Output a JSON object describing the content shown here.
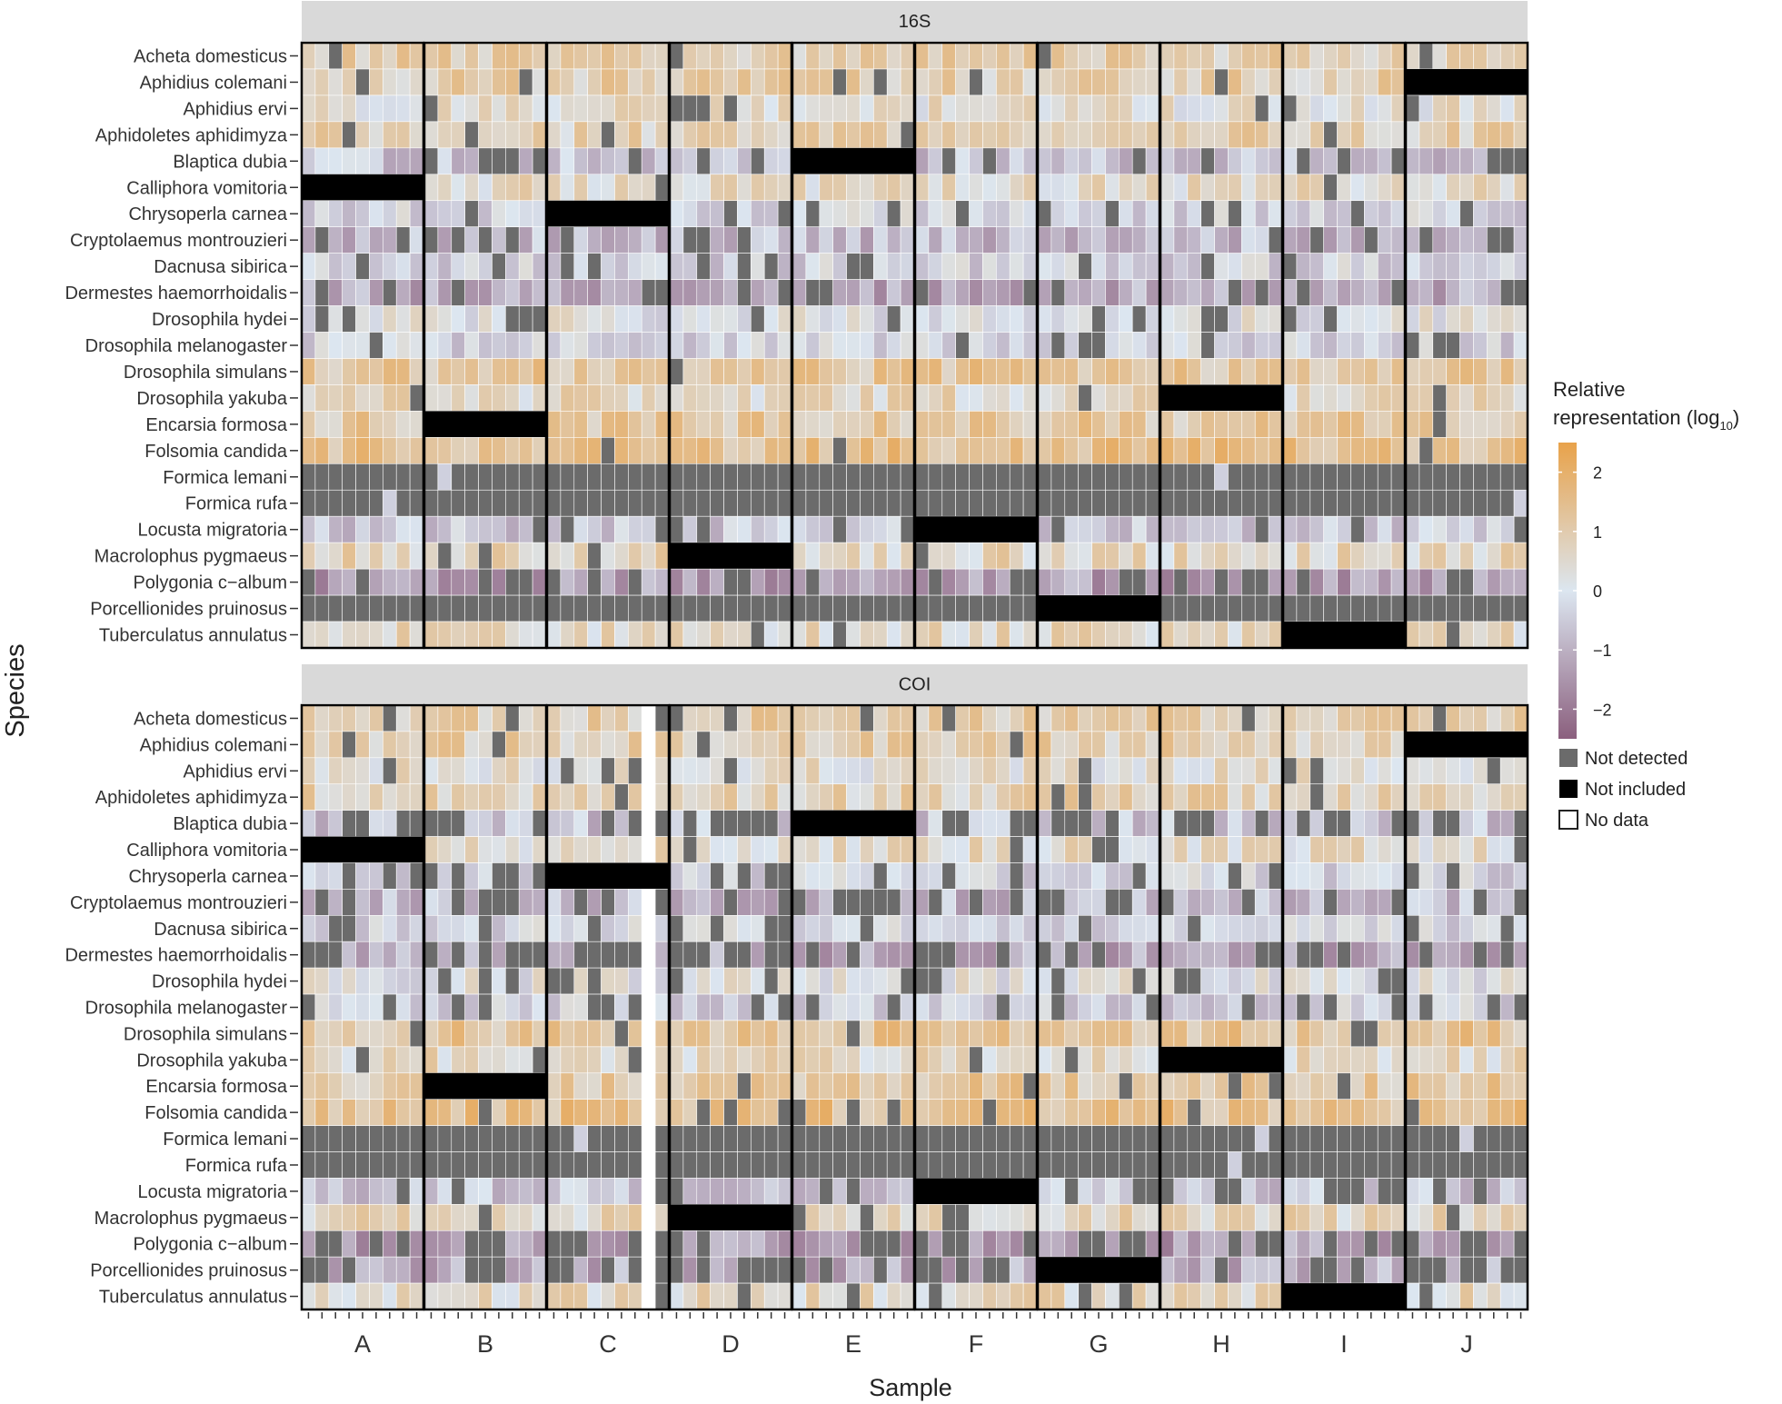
{
  "chart_data": {
    "type": "heatmap",
    "facets": [
      "16S",
      "COI"
    ],
    "species": [
      "Acheta domesticus",
      "Aphidius colemani",
      "Aphidius ervi",
      "Aphidoletes aphidimyza",
      "Blaptica dubia",
      "Calliphora vomitoria",
      "Chrysoperla carnea",
      "Cryptolaemus montrouzieri",
      "Dacnusa sibirica",
      "Dermestes haemorrhoidalis",
      "Drosophila hydei",
      "Drosophila melanogaster",
      "Drosophila simulans",
      "Drosophila yakuba",
      "Encarsia formosa",
      "Folsomia candida",
      "Formica lemani",
      "Formica rufa",
      "Locusta migratoria",
      "Macrolophus pygmaeus",
      "Polygonia c−album",
      "Porcellionides pruinosus",
      "Tuberculatus annulatus"
    ],
    "samples": [
      "A",
      "B",
      "C",
      "D",
      "E",
      "F",
      "G",
      "H",
      "I",
      "J"
    ],
    "replicates_per_sample": 9,
    "xlabel": "Sample",
    "ylabel": "Species",
    "legend": {
      "title_line1": "Relative",
      "title_line2": "representation (log",
      "title_sub": "10",
      "title_close": ")",
      "ticks": [
        "2",
        "1",
        "0",
        "−1",
        "−2"
      ],
      "tick_values": [
        2,
        1,
        0,
        -1,
        -2
      ],
      "range": [
        -2.5,
        2.5
      ],
      "colors": {
        "high": "#e8a24a",
        "mid": "#dce6f0",
        "low": "#8b5f7e"
      },
      "categories": [
        {
          "label": "Not detected",
          "color": "#6b6b6b"
        },
        {
          "label": "Not included",
          "color": "#000000"
        },
        {
          "label": "No data",
          "color": "#ffffff"
        }
      ],
      "position": "right"
    },
    "species_baseline_log10": {
      "Acheta domesticus": 0.9,
      "Aphidius colemani": 0.9,
      "Aphidius ervi": 0.4,
      "Aphidoletes aphidimyza": 0.8,
      "Blaptica dubia": -0.6,
      "Calliphora vomitoria": 0.5,
      "Chrysoperla carnea": -0.2,
      "Cryptolaemus montrouzieri": -0.8,
      "Dacnusa sibirica": -0.3,
      "Dermestes haemorrhoidalis": -1.1,
      "Drosophila hydei": 0.1,
      "Drosophila melanogaster": -0.3,
      "Drosophila simulans": 1.2,
      "Drosophila yakuba": 0.6,
      "Encarsia formosa": 1.1,
      "Folsomia candida": 1.4,
      "Formica lemani": null,
      "Formica rufa": null,
      "Locusta migratoria": -0.5,
      "Macrolophus pygmaeus": 0.7,
      "Polygonia c−album": -1.3,
      "Porcellionides pruinosus": -1.0,
      "Tuberculatus annulatus": 0.6
    },
    "not_included": {
      "16S": {
        "A": "Calliphora vomitoria",
        "B": "Encarsia formosa",
        "C": "Chrysoperla carnea",
        "D": "Macrolophus pygmaeus",
        "E": "Blaptica dubia",
        "F": "Locusta migratoria",
        "G": "Porcellionides pruinosus",
        "H": "Drosophila yakuba",
        "I": "Tuberculatus annulatus",
        "J": "Aphidius colemani"
      },
      "COI": {
        "A": "Calliphora vomitoria",
        "B": "Encarsia formosa",
        "C": "Chrysoperla carnea",
        "D": "Macrolophus pygmaeus",
        "E": "Blaptica dubia",
        "F": "Locusta migratoria",
        "G": "Porcellionides pruinosus",
        "H": "Drosophila yakuba",
        "I": "Tuberculatus annulatus",
        "J": "Aphidius colemani"
      }
    },
    "not_detected_species": {
      "16S": [
        "Formica lemani",
        "Formica rufa",
        "Porcellionides pruinosus"
      ],
      "COI": [
        "Formica lemani",
        "Formica rufa"
      ]
    },
    "no_data": {
      "COI": {
        "sample": "C",
        "replicate": 8
      }
    }
  }
}
